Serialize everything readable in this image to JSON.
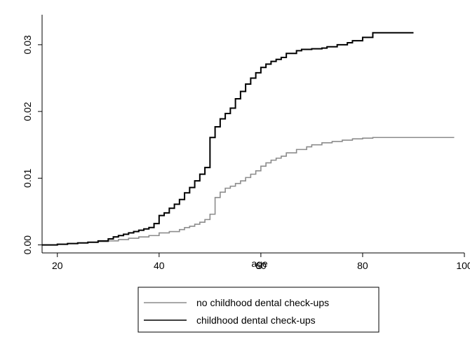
{
  "chart_data": {
    "type": "line",
    "step": true,
    "xlabel": "age",
    "ylabel": "",
    "xlim": [
      17,
      100
    ],
    "ylim": [
      -0.0012,
      0.0345
    ],
    "xticks": [
      20,
      40,
      60,
      80,
      100
    ],
    "yticks": [
      0.0,
      0.01,
      0.02,
      0.03
    ],
    "ytick_labels": [
      "0.00",
      "0.01",
      "0.02",
      "0.03"
    ],
    "grid": false,
    "legend_position": "bottom",
    "series": [
      {
        "name": "no childhood dental check-ups",
        "color": "#8c8c8c",
        "x": [
          17,
          20,
          22,
          24,
          26,
          28,
          30,
          32,
          34,
          36,
          38,
          40,
          42,
          44,
          45,
          46,
          47,
          48,
          49,
          50,
          51,
          52,
          53,
          54,
          55,
          56,
          57,
          58,
          59,
          60,
          61,
          62,
          63,
          64,
          65,
          67,
          69,
          70,
          72,
          74,
          76,
          78,
          80,
          82,
          98
        ],
        "y": [
          0.0,
          0.0001,
          0.0002,
          0.0003,
          0.0004,
          0.0005,
          0.0006,
          0.0008,
          0.001,
          0.0012,
          0.0014,
          0.0018,
          0.002,
          0.0023,
          0.0026,
          0.0028,
          0.0031,
          0.0034,
          0.0038,
          0.0046,
          0.0071,
          0.0079,
          0.0085,
          0.0088,
          0.0092,
          0.0096,
          0.0101,
          0.0106,
          0.0111,
          0.0118,
          0.0123,
          0.0127,
          0.013,
          0.0133,
          0.0138,
          0.0143,
          0.0147,
          0.015,
          0.0153,
          0.0155,
          0.0157,
          0.0159,
          0.016,
          0.0161,
          0.0161
        ]
      },
      {
        "name": "childhood dental check-ups",
        "color": "#000000",
        "x": [
          17,
          20,
          22,
          24,
          26,
          28,
          30,
          31,
          32,
          33,
          34,
          35,
          36,
          37,
          38,
          39,
          40,
          41,
          42,
          43,
          44,
          45,
          46,
          47,
          48,
          49,
          50,
          51,
          52,
          53,
          54,
          55,
          56,
          57,
          58,
          59,
          60,
          61,
          62,
          63,
          64,
          65,
          67,
          68,
          70,
          72,
          73,
          75,
          77,
          78,
          80,
          82,
          90
        ],
        "y": [
          0.0,
          0.0001,
          0.0002,
          0.0003,
          0.0004,
          0.0006,
          0.0009,
          0.0012,
          0.0014,
          0.0016,
          0.0018,
          0.002,
          0.0022,
          0.0024,
          0.0026,
          0.0032,
          0.0044,
          0.0048,
          0.0055,
          0.0061,
          0.0068,
          0.0078,
          0.0086,
          0.0096,
          0.0106,
          0.0116,
          0.0161,
          0.0177,
          0.0189,
          0.0197,
          0.0205,
          0.0219,
          0.023,
          0.0241,
          0.025,
          0.0258,
          0.0266,
          0.0271,
          0.0275,
          0.0278,
          0.0281,
          0.0287,
          0.0291,
          0.0293,
          0.0294,
          0.0295,
          0.0297,
          0.03,
          0.0303,
          0.0306,
          0.0311,
          0.0318,
          0.0318
        ]
      }
    ]
  }
}
